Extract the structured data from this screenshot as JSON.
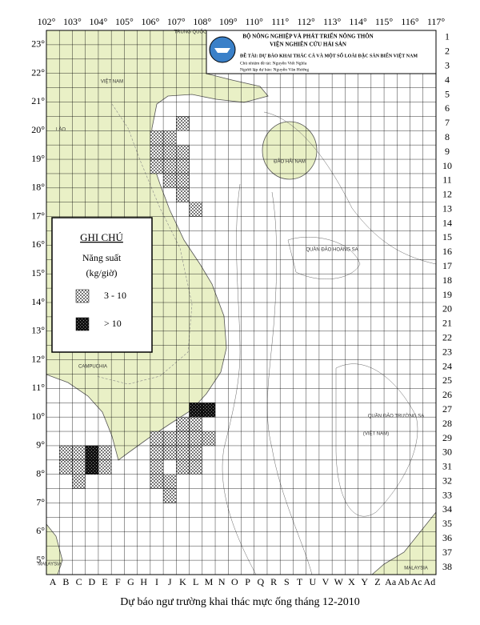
{
  "header": {
    "ministry": "BỘ NÔNG NGHIỆP VÀ PHÁT TRIỂN NÔNG THÔN",
    "institute": "VIỆN NGHIÊN CỨU HẢI SẢN",
    "project": "ĐỀ TÀI: DỰ BÁO KHAI THÁC CÁ VÀ MỘT SỐ LOÀI ĐẶC SẢN BIỂN VIỆT NAM",
    "leader": "Chủ nhiệm đề tài: Nguyễn Viết Nghĩa",
    "forecaster": "Người lập dự báo: Nguyễn Văn Hướng"
  },
  "longitudes": [
    "102°",
    "103°",
    "104°",
    "105°",
    "106°",
    "107°",
    "108°",
    "109°",
    "110°",
    "111°",
    "112°",
    "113°",
    "114°",
    "115°",
    "116°",
    "117°"
  ],
  "latitudes": [
    "23°",
    "22°",
    "21°",
    "20°",
    "19°",
    "18°",
    "17°",
    "16°",
    "15°",
    "14°",
    "13°",
    "12°",
    "11°",
    "10°",
    "9°",
    "8°",
    "7°",
    "6°",
    "5°"
  ],
  "rows": [
    "1",
    "2",
    "3",
    "4",
    "5",
    "6",
    "7",
    "8",
    "9",
    "10",
    "11",
    "12",
    "13",
    "14",
    "15",
    "16",
    "17",
    "18",
    "19",
    "20",
    "21",
    "22",
    "23",
    "24",
    "25",
    "26",
    "27",
    "28",
    "29",
    "30",
    "31",
    "32",
    "33",
    "34",
    "35",
    "36",
    "37",
    "38"
  ],
  "columns": [
    "A",
    "B",
    "C",
    "D",
    "E",
    "F",
    "G",
    "H",
    "I",
    "J",
    "K",
    "L",
    "M",
    "N",
    "O",
    "P",
    "Q",
    "R",
    "S",
    "T",
    "U",
    "V",
    "W",
    "X",
    "Y",
    "Z",
    "Aa",
    "Ab",
    "Ac",
    "Ad"
  ],
  "legend": {
    "title": "GHI CHÚ",
    "subtitle": "Năng suất",
    "unit": "(kg/giờ)",
    "items": [
      {
        "label": "3 - 10",
        "cells": [
          [
            "K",
            7
          ],
          [
            "I",
            8
          ],
          [
            "J",
            8
          ],
          [
            "I",
            9
          ],
          [
            "J",
            9
          ],
          [
            "K",
            9
          ],
          [
            "I",
            10
          ],
          [
            "J",
            10
          ],
          [
            "K",
            10
          ],
          [
            "J",
            11
          ],
          [
            "K",
            11
          ],
          [
            "K",
            12
          ],
          [
            "L",
            13
          ],
          [
            "K",
            28
          ],
          [
            "L",
            28
          ],
          [
            "I",
            29
          ],
          [
            "J",
            29
          ],
          [
            "K",
            29
          ],
          [
            "L",
            29
          ],
          [
            "M",
            29
          ],
          [
            "I",
            30
          ],
          [
            "J",
            30
          ],
          [
            "K",
            30
          ],
          [
            "L",
            30
          ],
          [
            "I",
            31
          ],
          [
            "K",
            31
          ],
          [
            "L",
            31
          ],
          [
            "I",
            32
          ],
          [
            "J",
            32
          ],
          [
            "J",
            33
          ],
          [
            "B",
            30
          ],
          [
            "C",
            30
          ],
          [
            "E",
            30
          ],
          [
            "B",
            31
          ],
          [
            "C",
            31
          ],
          [
            "E",
            31
          ],
          [
            "C",
            32
          ]
        ]
      },
      {
        "label": "> 10",
        "cells": [
          [
            "L",
            27
          ],
          [
            "M",
            27
          ],
          [
            "D",
            30
          ],
          [
            "D",
            31
          ]
        ]
      }
    ]
  },
  "places": [
    "TRUNG QUỐC",
    "VIỆT NAM",
    "LÀO",
    "CAMPUCHIA",
    "ĐẢO HẢI NAM",
    "QUẦN ĐẢO HOÀNG SA",
    "QUẦN ĐẢO TRƯỜNG SA",
    "(VIỆT NAM)",
    "MALAYSIA",
    "MALAYSIA"
  ],
  "caption": "Dự báo ngư trường khai thác mực ống tháng 12-2010"
}
